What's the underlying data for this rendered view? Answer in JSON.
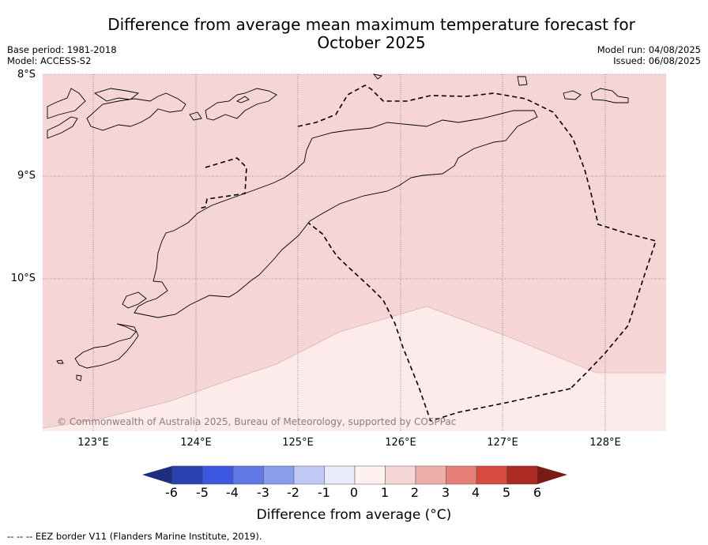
{
  "title": "Difference from average mean maximum temperature forecast for October 2025",
  "info": {
    "base_period": "Base period: 1981-2018",
    "model": "Model: ACCESS-S2",
    "model_run": "Model run: 04/08/2025",
    "issued": "Issued: 06/08/2025"
  },
  "map": {
    "lat_labels": [
      "8°S",
      "9°S",
      "10°S"
    ],
    "lon_labels": [
      "123°E",
      "124°E",
      "125°E",
      "126°E",
      "127°E",
      "128°E"
    ],
    "copyright": "© Commonwealth of Australia 2025, Bureau of Meteorology, supported by COSPPac",
    "fill_colors": {
      "zone_1_to_2": "#f5d6d4",
      "zone_0_to_1": "#fcebea"
    }
  },
  "colorbar": {
    "title": "Difference from average (°C)",
    "ticks": [
      "-6",
      "-5",
      "-4",
      "-3",
      "-2",
      "-1",
      "0",
      "1",
      "2",
      "3",
      "4",
      "5",
      "6"
    ],
    "colors": [
      "#2a3fb0",
      "#3d58e0",
      "#5f78e6",
      "#8a9ded",
      "#c0c9f5",
      "#e8ebfb",
      "#fdf0ef",
      "#f6d6d4",
      "#eeafab",
      "#e57f78",
      "#d94a40",
      "#ab2a22"
    ],
    "under_color": "#1d2d80",
    "over_color": "#7a1c16"
  },
  "footer": "--  --  -- EEZ border V11 (Flanders Marine Institute, 2019)."
}
